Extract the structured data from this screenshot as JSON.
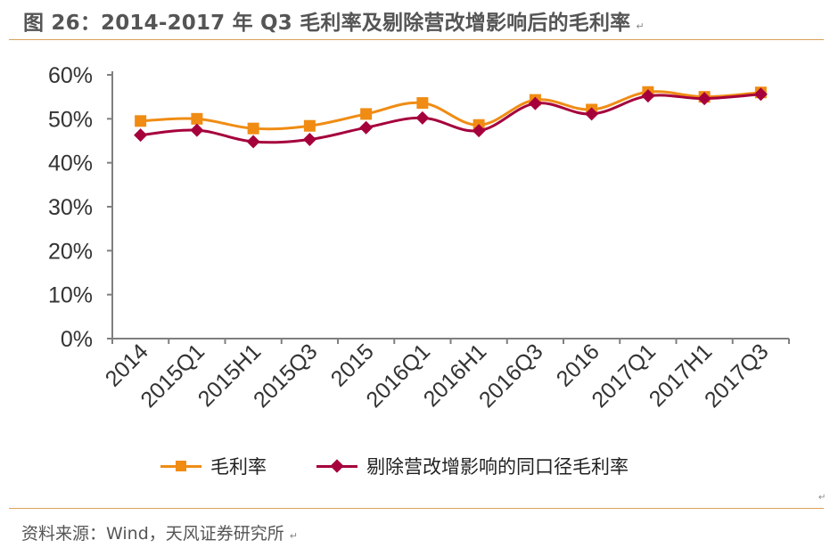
{
  "figure": {
    "title": "图 26：2014-2017 年 Q3 毛利率及剔除营改增影响后的毛利率",
    "title_mark": "↵",
    "source": "资料来源：Wind，天风证券研究所",
    "source_mark": "↵",
    "para_mark": "↵"
  },
  "chart_data": {
    "type": "line",
    "categories": [
      "2014",
      "2015Q1",
      "2015H1",
      "2015Q3",
      "2015",
      "2016Q1",
      "2016H1",
      "2016Q3",
      "2016",
      "2017Q1",
      "2017H1",
      "2017Q3"
    ],
    "series": [
      {
        "name": "毛利率",
        "color": "#f08c14",
        "marker": "square",
        "values": [
          49.5,
          50.0,
          47.8,
          48.4,
          51.1,
          53.6,
          48.6,
          54.3,
          52.1,
          56.1,
          55.0,
          56.0
        ]
      },
      {
        "name": "剔除营改增影响的同口径毛利率",
        "color": "#a5003c",
        "marker": "diamond",
        "values": [
          46.3,
          47.4,
          44.8,
          45.3,
          48.0,
          50.2,
          47.3,
          53.5,
          51.1,
          55.2,
          54.6,
          55.6
        ]
      }
    ],
    "y_ticks": [
      "0%",
      "10%",
      "20%",
      "30%",
      "40%",
      "50%",
      "60%"
    ],
    "ylim": [
      0,
      60
    ],
    "grid": false,
    "legend_position": "bottom"
  }
}
